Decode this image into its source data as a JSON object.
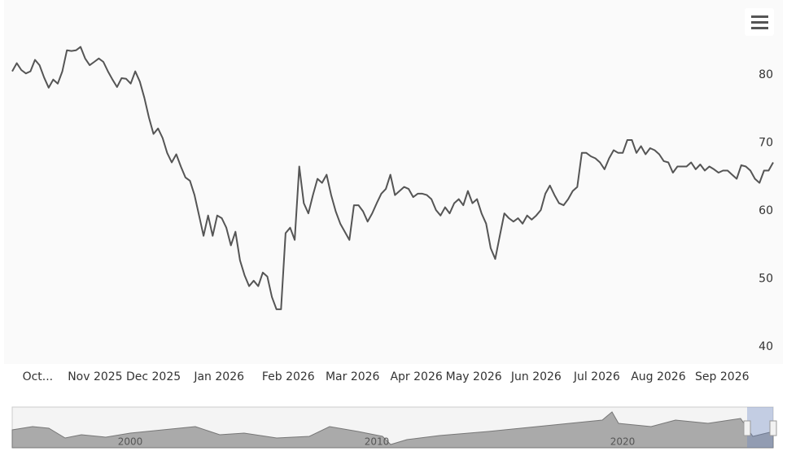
{
  "chart_data": {
    "type": "line",
    "values": [
      80.5,
      81.7,
      80.7,
      80.2,
      80.5,
      82.2,
      81.4,
      79.6,
      78.1,
      79.3,
      78.7,
      80.5,
      83.6,
      83.5,
      83.6,
      84.1,
      82.4,
      81.4,
      81.9,
      82.4,
      81.9,
      80.5,
      79.3,
      78.2,
      79.5,
      79.4,
      78.7,
      80.5,
      79.0,
      76.6,
      73.7,
      71.3,
      72.1,
      70.7,
      68.5,
      67.1,
      68.3,
      66.5,
      64.9,
      64.4,
      62.3,
      59.3,
      56.3,
      59.3,
      56.3,
      59.3,
      58.9,
      57.5,
      54.9,
      56.9,
      52.7,
      50.5,
      48.9,
      49.7,
      48.9,
      50.9,
      50.3,
      47.3,
      45.5,
      45.5,
      56.7,
      57.5,
      55.7,
      66.5,
      61.1,
      59.6,
      62.3,
      64.7,
      64.1,
      65.3,
      62.3,
      59.9,
      58.1,
      56.9,
      55.7,
      60.8,
      60.8,
      59.9,
      58.4,
      59.6,
      61.1,
      62.5,
      63.2,
      65.3,
      62.3,
      62.9,
      63.5,
      63.2,
      62.0,
      62.5,
      62.5,
      62.3,
      61.7,
      60.1,
      59.3,
      60.5,
      59.6,
      61.1,
      61.7,
      60.8,
      62.9,
      61.1,
      61.7,
      59.6,
      58.1,
      54.5,
      52.9,
      56.3,
      59.6,
      58.9,
      58.4,
      58.9,
      58.1,
      59.3,
      58.7,
      59.3,
      60.1,
      62.5,
      63.7,
      62.3,
      61.1,
      60.8,
      61.7,
      62.9,
      63.5,
      68.5,
      68.5,
      68.0,
      67.7,
      67.1,
      66.1,
      67.7,
      68.9,
      68.5,
      68.5,
      70.4,
      70.4,
      68.5,
      69.5,
      68.3,
      69.2,
      68.9,
      68.3,
      67.3,
      67.1,
      65.6,
      66.5,
      66.5,
      66.5,
      67.1,
      66.1,
      66.8,
      65.9,
      66.5,
      66.1,
      65.6,
      65.9,
      65.9,
      65.3,
      64.7,
      66.7,
      66.5,
      65.9,
      64.7,
      64.1,
      65.9,
      65.9,
      67.1
    ],
    "color": "#555555",
    "xlim": [
      0,
      167
    ],
    "xticks": [
      {
        "value": 5.6,
        "label": "Oct..."
      },
      {
        "value": 18.2,
        "label": "Nov 2025"
      },
      {
        "value": 31,
        "label": "Dec 2025"
      },
      {
        "value": 45.4,
        "label": "Jan 2026"
      },
      {
        "value": 60.6,
        "label": "Feb 2026"
      },
      {
        "value": 74.7,
        "label": "Mar 2026"
      },
      {
        "value": 88.7,
        "label": "Apr 2026"
      },
      {
        "value": 101.3,
        "label": "May 2026"
      },
      {
        "value": 115,
        "label": "Jun 2026"
      },
      {
        "value": 128.3,
        "label": "Jul 2026"
      },
      {
        "value": 141.8,
        "label": "Aug 2026"
      },
      {
        "value": 155.8,
        "label": "Sep 2026"
      }
    ],
    "ylim": [
      37.7,
      89.8
    ],
    "yticks": [
      40,
      50,
      60,
      70,
      80
    ],
    "grid": false
  },
  "navigator": {
    "labels": [
      "2000",
      "2010",
      "2020"
    ]
  }
}
